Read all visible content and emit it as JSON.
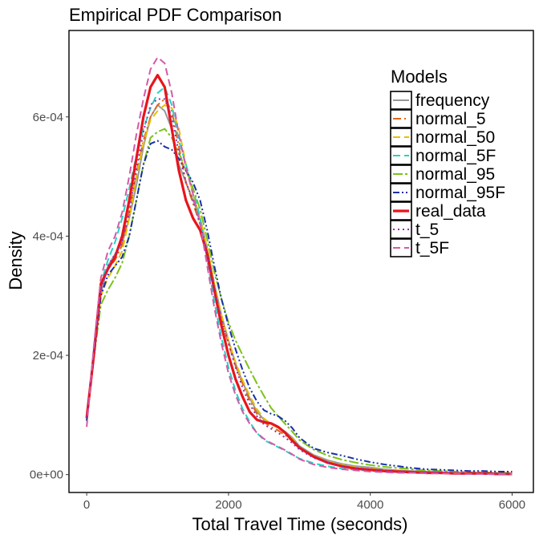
{
  "chart_data": {
    "type": "line",
    "title": "Empirical PDF Comparison",
    "xlabel": "Total Travel Time (seconds)",
    "ylabel": "Density",
    "xlim": [
      -250,
      6300
    ],
    "ylim": [
      -3e-05,
      0.000745
    ],
    "x_ticks": [
      0,
      2000,
      4000,
      6000
    ],
    "x_tick_labels": [
      "0",
      "2000",
      "4000",
      "6000"
    ],
    "y_ticks": [
      0,
      0.0002,
      0.0004,
      0.0006
    ],
    "y_tick_labels": [
      "0e+00",
      "2e-04",
      "4e-04",
      "6e-04"
    ],
    "grid": false,
    "legend": {
      "title": "Models",
      "position": "top-right",
      "entries": [
        "frequency",
        "normal_5",
        "normal_50",
        "normal_5F",
        "normal_95",
        "normal_95F",
        "real_data",
        "t_5",
        "t_5F"
      ]
    },
    "x": [
      0,
      100,
      200,
      300,
      400,
      500,
      600,
      700,
      800,
      900,
      1000,
      1100,
      1200,
      1300,
      1400,
      1500,
      1600,
      1700,
      1800,
      1900,
      2000,
      2100,
      2200,
      2300,
      2400,
      2500,
      2600,
      2700,
      2800,
      2900,
      3000,
      3200,
      3400,
      3600,
      3800,
      4000,
      4200,
      4400,
      4600,
      4800,
      5000,
      5200,
      5400,
      5600,
      5800,
      6000
    ],
    "series": [
      {
        "name": "frequency",
        "color": "#999999",
        "dash": "solid",
        "width": 2,
        "values": [
          9.5e-05,
          0.0002,
          0.000305,
          0.00035,
          0.00037,
          0.00039,
          0.00043,
          0.000485,
          0.00055,
          0.0006,
          0.00062,
          0.00061,
          0.00058,
          0.00052,
          0.00049,
          0.00046,
          0.00043,
          0.00038,
          0.00032,
          0.000268,
          0.000225,
          0.000186,
          0.000155,
          0.000128,
          0.000106,
          9.2e-05,
          8.5e-05,
          8e-05,
          7.2e-05,
          6.2e-05,
          4.8e-05,
          3.3e-05,
          2.4e-05,
          1.8e-05,
          1.4e-05,
          1.2e-05,
          9e-06,
          7e-06,
          6e-06,
          5e-06,
          4e-06,
          3e-06,
          3e-06,
          2e-06,
          2e-06,
          2e-06
        ]
      },
      {
        "name": "normal_5",
        "color": "#E0661A",
        "dash": "10,4,2,4",
        "width": 2,
        "values": [
          9.2e-05,
          0.0002,
          0.000315,
          0.000345,
          0.00036,
          0.000385,
          0.00044,
          0.000505,
          0.00056,
          0.0006,
          0.00062,
          0.00063,
          0.00061,
          0.00055,
          0.00049,
          0.000455,
          0.00042,
          0.00037,
          0.00031,
          0.00026,
          0.00022,
          0.000182,
          0.000152,
          0.000124,
          0.000102,
          8.8e-05,
          8e-05,
          7.4e-05,
          6.6e-05,
          5.6e-05,
          4.4e-05,
          3e-05,
          2.1e-05,
          1.5e-05,
          1.1e-05,
          9e-06,
          7e-06,
          6e-06,
          5e-06,
          4e-06,
          3e-06,
          3e-06,
          2e-06,
          2e-06,
          2e-06,
          1e-06
        ]
      },
      {
        "name": "normal_50",
        "color": "#E6C000",
        "dash": "9,5",
        "width": 2,
        "values": [
          9e-05,
          0.0002,
          0.0003,
          0.00033,
          0.00035,
          0.000375,
          0.00043,
          0.0005,
          0.000555,
          0.000595,
          0.00061,
          0.00062,
          0.000615,
          0.00058,
          0.00052,
          0.00047,
          0.00043,
          0.00038,
          0.00032,
          0.000268,
          0.000225,
          0.000188,
          0.000158,
          0.000132,
          0.00011,
          9.4e-05,
          8.5e-05,
          7.8e-05,
          7e-05,
          6e-05,
          4.6e-05,
          3.1e-05,
          2.2e-05,
          1.6e-05,
          1.2e-05,
          1e-05,
          8e-06,
          6e-06,
          5e-06,
          4e-06,
          3e-06,
          3e-06,
          2e-06,
          2e-06,
          2e-06,
          1e-06
        ]
      },
      {
        "name": "normal_5F",
        "color": "#22D3C7",
        "dash": "9,5",
        "width": 2,
        "values": [
          9e-05,
          0.00021,
          0.00032,
          0.00036,
          0.00039,
          0.00043,
          0.00048,
          0.000535,
          0.00058,
          0.000615,
          0.00064,
          0.00065,
          0.00062,
          0.00056,
          0.00052,
          0.00048,
          0.00043,
          0.00036,
          0.00029,
          0.00023,
          0.00018,
          0.00014,
          0.00011,
          8.8e-05,
          7e-05,
          5.8e-05,
          5.2e-05,
          4.6e-05,
          4e-05,
          3.3e-05,
          2.7e-05,
          1.9e-05,
          1.4e-05,
          1e-05,
          8e-06,
          6e-06,
          5e-06,
          4e-06,
          3e-06,
          3e-06,
          2e-06,
          2e-06,
          2e-06,
          1e-06,
          1e-06,
          1e-06
        ]
      },
      {
        "name": "normal_95",
        "color": "#7CC21A",
        "dash": "12,3,3,3",
        "width": 2,
        "values": [
          9e-05,
          0.000195,
          0.000285,
          0.00031,
          0.00033,
          0.000355,
          0.0004,
          0.00046,
          0.00052,
          0.000565,
          0.000575,
          0.00058,
          0.000565,
          0.00054,
          0.00051,
          0.00048,
          0.000445,
          0.000395,
          0.00034,
          0.000295,
          0.000255,
          0.000225,
          0.0002,
          0.000176,
          0.000153,
          0.000132,
          0.000112,
          9.8e-05,
          8.5e-05,
          7.2e-05,
          5.8e-05,
          4.2e-05,
          3.2e-05,
          2.5e-05,
          2e-05,
          1.6e-05,
          1.3e-05,
          1.1e-05,
          9e-06,
          7e-06,
          6e-06,
          5e-06,
          4e-06,
          4e-06,
          3e-06,
          3e-06
        ]
      },
      {
        "name": "normal_95F",
        "color": "#1A2FA8",
        "dash": "8,3,2,3,2,3",
        "width": 2,
        "values": [
          9e-05,
          0.000195,
          0.0003,
          0.000335,
          0.00035,
          0.000365,
          0.0004,
          0.00046,
          0.00052,
          0.000555,
          0.00056,
          0.00055,
          0.000545,
          0.00053,
          0.00051,
          0.00049,
          0.00046,
          0.00041,
          0.00035,
          0.000295,
          0.00025,
          0.00021,
          0.000175,
          0.000145,
          0.000123,
          0.000108,
          0.000102,
          9.8e-05,
          9e-05,
          7.8e-05,
          6.2e-05,
          4.4e-05,
          3.7e-05,
          3.2e-05,
          2.6e-05,
          2.1e-05,
          1.7e-05,
          1.4e-05,
          1.1e-05,
          9e-06,
          8e-06,
          7e-06,
          6e-06,
          6e-06,
          5e-06,
          5e-06
        ]
      },
      {
        "name": "real_data",
        "color": "#E8141C",
        "dash": "solid",
        "width": 3.2,
        "values": [
          9.5e-05,
          0.0002,
          0.00032,
          0.000345,
          0.000365,
          0.0004,
          0.00046,
          0.00053,
          0.0006,
          0.00065,
          0.00067,
          0.00065,
          0.00058,
          0.00051,
          0.00046,
          0.00043,
          0.00041,
          0.00037,
          0.00031,
          0.00025,
          0.0002,
          0.00016,
          0.00013,
          0.000105,
          9.2e-05,
          8.8e-05,
          8.6e-05,
          8e-05,
          7e-05,
          5.7e-05,
          4.5e-05,
          3e-05,
          2e-05,
          1.4e-05,
          1e-05,
          8e-06,
          6e-06,
          5e-06,
          4e-06,
          3e-06,
          3e-06,
          2e-06,
          2e-06,
          2e-06,
          1e-06,
          1e-06
        ]
      },
      {
        "name": "t_5",
        "color": "#8E2FA8",
        "dash": "2,4",
        "width": 2,
        "values": [
          9.5e-05,
          0.000205,
          0.00031,
          0.00035,
          0.00037,
          0.00039,
          0.00044,
          0.00051,
          0.000575,
          0.00062,
          0.00063,
          0.00063,
          0.0006,
          0.00054,
          0.00049,
          0.00046,
          0.00042,
          0.00037,
          0.00031,
          0.00026,
          0.00022,
          0.00018,
          0.000145,
          0.000118,
          9.8e-05,
          8.4e-05,
          7.7e-05,
          7e-05,
          6.2e-05,
          5.3e-05,
          4.2e-05,
          2.8e-05,
          2e-05,
          1.4e-05,
          1.1e-05,
          9e-06,
          7e-06,
          5e-06,
          4e-06,
          4e-06,
          3e-06,
          3e-06,
          2e-06,
          2e-06,
          2e-06,
          1e-06
        ]
      },
      {
        "name": "t_5F",
        "color": "#D45AA7",
        "dash": "9,5",
        "width": 2,
        "values": [
          8e-05,
          0.000215,
          0.00033,
          0.000375,
          0.0004,
          0.00044,
          0.0005,
          0.00057,
          0.00063,
          0.00068,
          0.0007,
          0.00069,
          0.00064,
          0.00057,
          0.000515,
          0.00047,
          0.00042,
          0.00035,
          0.00028,
          0.00022,
          0.00017,
          0.000133,
          0.000105,
          8.5e-05,
          7e-05,
          6e-05,
          5.3e-05,
          4.7e-05,
          4.1e-05,
          3.4e-05,
          2.6e-05,
          1.7e-05,
          1.2e-05,
          9e-06,
          7e-06,
          5e-06,
          4e-06,
          3e-06,
          3e-06,
          2e-06,
          2e-06,
          2e-06,
          1e-06,
          1e-06,
          1e-06,
          1e-06
        ]
      }
    ]
  }
}
